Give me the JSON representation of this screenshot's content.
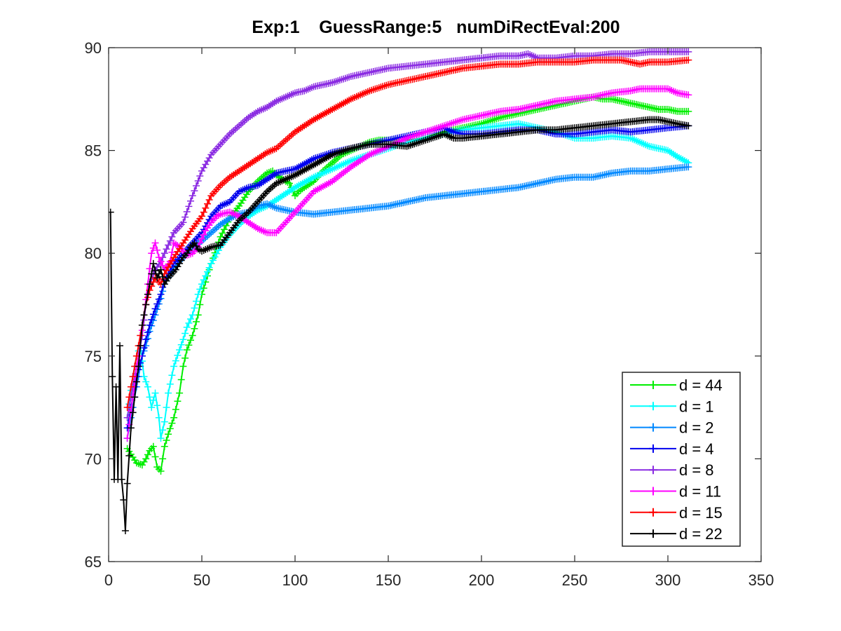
{
  "chart_data": {
    "type": "line",
    "title": "Exp:1    GuessRange:5   numDiRectEval:200",
    "xlabel": "",
    "ylabel": "",
    "xlim": [
      0,
      350
    ],
    "ylim": [
      65,
      90
    ],
    "xticks": [
      0,
      50,
      100,
      150,
      200,
      250,
      300,
      350
    ],
    "yticks": [
      65,
      70,
      75,
      80,
      85,
      90
    ],
    "xtick_labels": [
      "0",
      "50",
      "100",
      "150",
      "200",
      "250",
      "300",
      "350"
    ],
    "ytick_labels": [
      "65",
      "70",
      "75",
      "80",
      "85",
      "90"
    ],
    "grid": false,
    "box": true,
    "marker": "+",
    "legend_position": "bottom-right",
    "series": [
      {
        "name": "d = 44",
        "color": "#00ee00",
        "x": [
          10,
          15,
          18,
          20,
          22,
          24,
          26,
          28,
          30,
          32,
          35,
          38,
          40,
          42,
          45,
          48,
          50,
          55,
          60,
          65,
          70,
          75,
          80,
          85,
          88,
          90,
          95,
          97,
          100,
          102,
          105,
          110,
          115,
          120,
          125,
          130,
          135,
          140,
          145,
          150,
          160,
          170,
          180,
          190,
          200,
          210,
          220,
          230,
          240,
          250,
          255,
          260,
          265,
          270,
          275,
          280,
          285,
          290,
          295,
          300,
          305,
          311
        ],
        "y": [
          70.5,
          69.8,
          69.7,
          70.0,
          70.4,
          70.6,
          69.6,
          69.4,
          70.6,
          71.2,
          72.0,
          73.2,
          74.5,
          75.3,
          76.0,
          77.0,
          78.0,
          79.5,
          80.8,
          81.7,
          82.3,
          83.0,
          83.5,
          83.9,
          84.0,
          83.8,
          83.5,
          83.4,
          82.8,
          83.0,
          83.2,
          83.5,
          84.0,
          84.4,
          84.8,
          85.0,
          85.2,
          85.4,
          85.5,
          85.5,
          85.5,
          85.6,
          85.9,
          86.1,
          86.3,
          86.6,
          86.8,
          87.0,
          87.2,
          87.4,
          87.5,
          87.6,
          87.5,
          87.5,
          87.4,
          87.3,
          87.2,
          87.1,
          87.0,
          87.0,
          86.9,
          86.9
        ]
      },
      {
        "name": "d = 1",
        "color": "#00ffff",
        "x": [
          10,
          13,
          15,
          17,
          19,
          21,
          23,
          25,
          27,
          28,
          30,
          32,
          35,
          38,
          40,
          42,
          45,
          48,
          50,
          55,
          60,
          65,
          70,
          75,
          80,
          85,
          90,
          95,
          100,
          110,
          120,
          130,
          140,
          150,
          160,
          170,
          180,
          190,
          200,
          210,
          220,
          230,
          240,
          250,
          260,
          270,
          280,
          285,
          290,
          295,
          300,
          305,
          311
        ],
        "y": [
          72.0,
          74.0,
          75.0,
          75.5,
          74.0,
          73.5,
          72.5,
          73.2,
          72.0,
          71.0,
          71.8,
          73.2,
          74.5,
          75.3,
          75.8,
          76.4,
          77.0,
          78.0,
          78.5,
          79.5,
          80.3,
          80.9,
          81.4,
          81.8,
          82.1,
          82.3,
          82.6,
          82.9,
          83.2,
          83.7,
          84.1,
          84.5,
          84.8,
          85.1,
          85.4,
          85.6,
          85.8,
          86.0,
          86.1,
          86.2,
          86.3,
          86.1,
          85.9,
          85.6,
          85.6,
          85.7,
          85.6,
          85.4,
          85.2,
          85.1,
          85.0,
          84.7,
          84.4
        ]
      },
      {
        "name": "d = 2",
        "color": "#0088ff",
        "x": [
          10,
          15,
          18,
          20,
          22,
          25,
          28,
          30,
          35,
          40,
          45,
          50,
          55,
          60,
          65,
          70,
          75,
          80,
          85,
          90,
          95,
          100,
          110,
          120,
          130,
          140,
          150,
          160,
          170,
          180,
          190,
          200,
          210,
          220,
          230,
          240,
          250,
          260,
          270,
          280,
          290,
          300,
          311
        ],
        "y": [
          71.0,
          73.5,
          75.0,
          75.5,
          76.2,
          77.0,
          77.8,
          78.5,
          79.3,
          79.8,
          80.2,
          80.6,
          81.0,
          81.4,
          81.7,
          81.9,
          82.0,
          82.3,
          82.4,
          82.2,
          82.1,
          82.0,
          81.9,
          82.0,
          82.1,
          82.2,
          82.3,
          82.5,
          82.7,
          82.8,
          82.9,
          83.0,
          83.1,
          83.2,
          83.4,
          83.6,
          83.7,
          83.7,
          83.9,
          84.0,
          84.0,
          84.1,
          84.2
        ]
      },
      {
        "name": "d = 4",
        "color": "#0000ee",
        "x": [
          10,
          15,
          18,
          20,
          22,
          25,
          28,
          30,
          35,
          40,
          45,
          50,
          55,
          60,
          65,
          70,
          75,
          80,
          85,
          90,
          95,
          100,
          110,
          120,
          130,
          140,
          150,
          160,
          170,
          175,
          180,
          185,
          190,
          200,
          210,
          220,
          230,
          240,
          250,
          260,
          270,
          280,
          290,
          300,
          311
        ],
        "y": [
          71.5,
          74.0,
          75.0,
          75.8,
          76.5,
          77.3,
          78.0,
          78.7,
          79.5,
          80.0,
          80.5,
          81.0,
          81.8,
          82.3,
          82.5,
          83.0,
          83.2,
          83.3,
          83.6,
          83.9,
          84.0,
          84.1,
          84.6,
          84.9,
          85.1,
          85.3,
          85.5,
          85.7,
          85.9,
          86.0,
          86.1,
          85.9,
          85.8,
          85.8,
          85.9,
          86.0,
          86.0,
          85.8,
          85.8,
          85.9,
          86.0,
          85.9,
          86.0,
          86.1,
          86.2
        ]
      },
      {
        "name": "d = 8",
        "color": "#8a2be2",
        "x": [
          10,
          15,
          18,
          20,
          22,
          25,
          28,
          30,
          35,
          40,
          45,
          50,
          55,
          60,
          65,
          70,
          75,
          80,
          85,
          90,
          95,
          100,
          105,
          110,
          120,
          130,
          140,
          150,
          160,
          170,
          180,
          190,
          200,
          210,
          220,
          225,
          230,
          240,
          250,
          260,
          270,
          280,
          290,
          300,
          311
        ],
        "y": [
          72.0,
          74.5,
          76.0,
          77.5,
          78.5,
          79.2,
          79.6,
          80.0,
          81.0,
          81.5,
          82.8,
          84.0,
          84.8,
          85.3,
          85.8,
          86.2,
          86.6,
          86.9,
          87.1,
          87.4,
          87.6,
          87.8,
          87.9,
          88.1,
          88.3,
          88.6,
          88.8,
          89.0,
          89.1,
          89.2,
          89.3,
          89.4,
          89.5,
          89.6,
          89.6,
          89.7,
          89.5,
          89.5,
          89.6,
          89.6,
          89.7,
          89.7,
          89.8,
          89.8,
          89.8
        ]
      },
      {
        "name": "d = 11",
        "color": "#ff00ff",
        "x": [
          10,
          13,
          15,
          17,
          19,
          21,
          23,
          25,
          27,
          30,
          33,
          35,
          38,
          40,
          42,
          45,
          48,
          50,
          52,
          55,
          58,
          60,
          65,
          70,
          75,
          80,
          85,
          90,
          95,
          100,
          110,
          120,
          130,
          140,
          150,
          160,
          170,
          180,
          190,
          200,
          210,
          220,
          230,
          240,
          250,
          260,
          270,
          280,
          285,
          290,
          295,
          300,
          305,
          311
        ],
        "y": [
          71.0,
          73.0,
          74.5,
          75.5,
          77.0,
          78.5,
          80.0,
          80.5,
          79.8,
          79.2,
          79.6,
          80.5,
          80.3,
          80.1,
          79.9,
          80.0,
          80.3,
          80.7,
          81.1,
          81.5,
          81.8,
          81.9,
          82.0,
          81.8,
          81.5,
          81.2,
          81.0,
          81.0,
          81.5,
          82.0,
          83.0,
          83.5,
          84.2,
          84.8,
          85.2,
          85.6,
          85.9,
          86.2,
          86.5,
          86.7,
          86.9,
          87.0,
          87.2,
          87.4,
          87.5,
          87.6,
          87.8,
          87.9,
          88.0,
          88.0,
          88.0,
          88.0,
          87.8,
          87.7
        ]
      },
      {
        "name": "d = 15",
        "color": "#ff0000",
        "x": [
          10,
          15,
          18,
          20,
          22,
          25,
          28,
          30,
          35,
          40,
          45,
          50,
          55,
          60,
          65,
          70,
          75,
          80,
          85,
          90,
          95,
          100,
          110,
          120,
          130,
          140,
          150,
          160,
          170,
          180,
          190,
          200,
          210,
          220,
          230,
          240,
          250,
          260,
          270,
          275,
          280,
          285,
          290,
          300,
          311
        ],
        "y": [
          72.5,
          75.0,
          76.5,
          77.5,
          78.2,
          78.8,
          78.5,
          79.0,
          79.8,
          80.5,
          81.2,
          81.8,
          82.8,
          83.3,
          83.7,
          84.0,
          84.3,
          84.6,
          84.9,
          85.1,
          85.5,
          85.9,
          86.5,
          87.0,
          87.5,
          87.9,
          88.2,
          88.4,
          88.6,
          88.8,
          89.0,
          89.1,
          89.2,
          89.2,
          89.3,
          89.3,
          89.3,
          89.4,
          89.4,
          89.4,
          89.3,
          89.2,
          89.3,
          89.3,
          89.4
        ]
      },
      {
        "name": "d = 22",
        "color": "#000000",
        "x": [
          1,
          2,
          3,
          4,
          5,
          6,
          7,
          8,
          9,
          10,
          12,
          14,
          16,
          18,
          20,
          22,
          24,
          26,
          28,
          30,
          32,
          34,
          36,
          38,
          40,
          42,
          44,
          46,
          48,
          50,
          55,
          60,
          65,
          70,
          75,
          80,
          85,
          90,
          95,
          100,
          110,
          120,
          130,
          140,
          150,
          160,
          170,
          180,
          185,
          190,
          200,
          210,
          220,
          230,
          240,
          250,
          260,
          270,
          280,
          290,
          295,
          300,
          305,
          311
        ],
        "y": [
          82.0,
          74.0,
          69.0,
          73.5,
          69.0,
          75.5,
          69.0,
          68.0,
          66.5,
          68.8,
          71.5,
          73.0,
          74.5,
          76.5,
          77.5,
          78.5,
          79.5,
          78.8,
          79.2,
          78.5,
          78.8,
          79.0,
          79.2,
          79.5,
          79.8,
          80.0,
          80.3,
          80.5,
          80.2,
          80.1,
          80.3,
          80.4,
          81.0,
          81.6,
          82.0,
          82.5,
          83.0,
          83.4,
          83.6,
          83.8,
          84.3,
          84.8,
          85.1,
          85.3,
          85.3,
          85.2,
          85.5,
          85.8,
          85.6,
          85.6,
          85.7,
          85.8,
          85.9,
          86.0,
          86.0,
          86.1,
          86.2,
          86.3,
          86.4,
          86.5,
          86.5,
          86.4,
          86.3,
          86.2
        ]
      }
    ]
  }
}
